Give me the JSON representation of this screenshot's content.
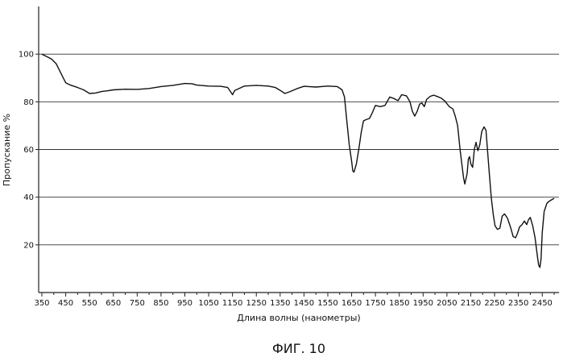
{
  "chart_data": {
    "type": "line",
    "title": "",
    "xlabel": "Длина волны (нанометры)",
    "ylabel": "Пропускание %",
    "xlim": [
      350,
      2500
    ],
    "ylim": [
      0,
      120
    ],
    "grid": {
      "horizontal": true,
      "vertical": false
    },
    "legend": "none",
    "x_ticks": [
      350,
      450,
      550,
      650,
      750,
      850,
      950,
      1050,
      1150,
      1250,
      1350,
      1450,
      1550,
      1650,
      1750,
      1850,
      1950,
      2050,
      2150,
      2250,
      2350,
      2450
    ],
    "y_ticks": [
      20,
      40,
      60,
      80,
      100
    ],
    "series": [
      {
        "color": "#111111",
        "points": [
          [
            350,
            100
          ],
          [
            370,
            99
          ],
          [
            390,
            98
          ],
          [
            410,
            96
          ],
          [
            420,
            94
          ],
          [
            440,
            90
          ],
          [
            450,
            88
          ],
          [
            470,
            87
          ],
          [
            500,
            86
          ],
          [
            525,
            85
          ],
          [
            550,
            83.5
          ],
          [
            575,
            83.7
          ],
          [
            600,
            84.3
          ],
          [
            625,
            84.6
          ],
          [
            650,
            85
          ],
          [
            700,
            85.3
          ],
          [
            750,
            85.2
          ],
          [
            800,
            85.6
          ],
          [
            850,
            86.4
          ],
          [
            900,
            86.9
          ],
          [
            950,
            87.7
          ],
          [
            980,
            87.6
          ],
          [
            1000,
            87
          ],
          [
            1050,
            86.6
          ],
          [
            1100,
            86.5
          ],
          [
            1130,
            86
          ],
          [
            1140,
            84.5
          ],
          [
            1150,
            83
          ],
          [
            1160,
            84.8
          ],
          [
            1170,
            85.2
          ],
          [
            1200,
            86.6
          ],
          [
            1250,
            86.9
          ],
          [
            1300,
            86.6
          ],
          [
            1330,
            86
          ],
          [
            1350,
            84.8
          ],
          [
            1370,
            83.5
          ],
          [
            1390,
            84.2
          ],
          [
            1420,
            85.5
          ],
          [
            1450,
            86.5
          ],
          [
            1500,
            86.2
          ],
          [
            1550,
            86.6
          ],
          [
            1590,
            86.4
          ],
          [
            1610,
            85
          ],
          [
            1620,
            82
          ],
          [
            1630,
            72
          ],
          [
            1640,
            62
          ],
          [
            1650,
            55
          ],
          [
            1655,
            51
          ],
          [
            1660,
            50.5
          ],
          [
            1670,
            54
          ],
          [
            1680,
            60
          ],
          [
            1690,
            67
          ],
          [
            1700,
            72
          ],
          [
            1710,
            72.5
          ],
          [
            1725,
            73
          ],
          [
            1735,
            75
          ],
          [
            1750,
            78.5
          ],
          [
            1770,
            78
          ],
          [
            1790,
            78.5
          ],
          [
            1810,
            82
          ],
          [
            1825,
            81.5
          ],
          [
            1845,
            80.5
          ],
          [
            1860,
            83
          ],
          [
            1880,
            82.5
          ],
          [
            1895,
            80
          ],
          [
            1905,
            76
          ],
          [
            1915,
            74
          ],
          [
            1925,
            76
          ],
          [
            1935,
            79
          ],
          [
            1945,
            79.5
          ],
          [
            1955,
            78
          ],
          [
            1965,
            81
          ],
          [
            1980,
            82.3
          ],
          [
            1995,
            82.8
          ],
          [
            2010,
            82.2
          ],
          [
            2025,
            81.6
          ],
          [
            2040,
            80.5
          ],
          [
            2060,
            78
          ],
          [
            2075,
            77
          ],
          [
            2085,
            74
          ],
          [
            2095,
            70
          ],
          [
            2105,
            60
          ],
          [
            2115,
            52
          ],
          [
            2120,
            48
          ],
          [
            2125,
            45.5
          ],
          [
            2135,
            50
          ],
          [
            2140,
            56
          ],
          [
            2145,
            57
          ],
          [
            2150,
            54
          ],
          [
            2158,
            52.5
          ],
          [
            2165,
            60
          ],
          [
            2172,
            63
          ],
          [
            2180,
            59.5
          ],
          [
            2188,
            62
          ],
          [
            2196,
            67.5
          ],
          [
            2206,
            69.5
          ],
          [
            2214,
            68
          ],
          [
            2220,
            60
          ],
          [
            2228,
            50
          ],
          [
            2236,
            40
          ],
          [
            2244,
            33
          ],
          [
            2252,
            28
          ],
          [
            2262,
            26.5
          ],
          [
            2272,
            27
          ],
          [
            2282,
            32
          ],
          [
            2292,
            33
          ],
          [
            2305,
            31
          ],
          [
            2318,
            27
          ],
          [
            2328,
            23.5
          ],
          [
            2338,
            23
          ],
          [
            2345,
            24.5
          ],
          [
            2355,
            27.5
          ],
          [
            2365,
            28.5
          ],
          [
            2375,
            30
          ],
          [
            2385,
            28.5
          ],
          [
            2392,
            30.5
          ],
          [
            2400,
            31.5
          ],
          [
            2410,
            28
          ],
          [
            2420,
            23
          ],
          [
            2430,
            15
          ],
          [
            2435,
            11.5
          ],
          [
            2440,
            10.5
          ],
          [
            2445,
            14
          ],
          [
            2450,
            25
          ],
          [
            2458,
            34
          ],
          [
            2470,
            37.5
          ],
          [
            2482,
            38.5
          ],
          [
            2500,
            39.5
          ]
        ]
      }
    ]
  },
  "caption": "ФИГ. 10"
}
